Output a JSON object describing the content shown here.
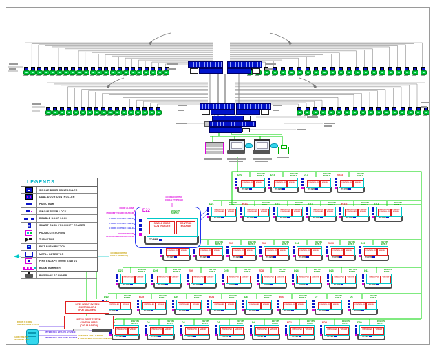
{
  "sheet": {
    "bg": "#ffffff",
    "border_color": "#9a9a9a"
  },
  "colors": {
    "blue": "#0a14c8",
    "green_wire": "#00d400",
    "device_green": "#00c83c",
    "cyan": "#00c8c8",
    "red": "#e02020",
    "magenta": "#dd00dd",
    "yellow": "#c8a000",
    "gray": "#8c8c8c",
    "dark_cable": "#4d4d4d"
  },
  "top_section": {
    "device_rows": [
      {
        "name": "top-left-run",
        "device_count": 22
      },
      {
        "name": "top-right-run",
        "device_count": 22
      },
      {
        "name": "mid-left-run",
        "device_count": 17
      },
      {
        "name": "mid-right-run",
        "device_count": 17
      }
    ],
    "equipment": [
      {
        "icon": "equipment-rack-icon"
      },
      {
        "icon": "workstation-icon"
      },
      {
        "icon": "workstation-icon"
      },
      {
        "icon": "printer-icon"
      }
    ]
  },
  "legend": {
    "title": "LEGENDS",
    "items": [
      {
        "icon": "single-door-controller-icon",
        "label": "SINGLE DOOR CONTROLLER"
      },
      {
        "icon": "dual-door-controller-icon",
        "label": "DUAL DOOR CONTROLLER"
      },
      {
        "icon": "panic-bar-icon",
        "label": "PANIC BAR"
      },
      {
        "icon": "single-door-lock-icon",
        "label": "SINGLE DOOR LOCK"
      },
      {
        "icon": "double-door-lock-icon",
        "label": "DOUBLE DOOR LOCK"
      },
      {
        "icon": "smart-card-proximity-reader-icon",
        "label": "SMART CARD PROXIMITY READER"
      },
      {
        "icon": "psu-accessories-icon",
        "label": "PSU ACCESSORIES"
      },
      {
        "icon": "turnstile-icon",
        "label": "TURNSTILE"
      },
      {
        "icon": "exit-push-button-icon",
        "label": "EXIT PUSH BUTTON"
      },
      {
        "icon": "metal-detector-icon",
        "label": "METAL DETECTOR"
      },
      {
        "icon": "fire-escape-door-status-icon",
        "label": "FIRE ESCAPE DOOR STATUS"
      },
      {
        "icon": "boom-barrier-icon",
        "label": "BOOM BARRIER"
      },
      {
        "icon": "baggage-scanner-icon",
        "label": "BAGGAGE SCANNER"
      }
    ]
  },
  "module_template": {
    "controller": "SINGLE DOOR CONTROLLER",
    "control_module": "CONTROL MODULE",
    "ups": "230V UPS\nSUPPLY",
    "pmp": "TO PMP"
  },
  "detail_module": {
    "id": "D22",
    "ups_annotation": "230V UPS\nSUPPLY",
    "top_annotation": "4 CORE COPPER\nCABLE (TYPICAL)",
    "left_annotations": [
      {
        "text": "DOOR ALARM",
        "color": "#dd00dd"
      },
      {
        "text": "PROXIMITY CARD READER",
        "color": "#dd00dd"
      },
      {
        "text": "6 CORE COPPER CABLE",
        "color": "#4444ee"
      },
      {
        "text": "8 CORE COPPER CABLE",
        "color": "#4444ee"
      },
      {
        "text": "4 CORE COPPER CABLE",
        "color": "#4444ee"
      },
      {
        "text": "DOUBLE DOOR\nELECTROMAGNETIC LOCK",
        "color": "#dd00dd"
      }
    ]
  },
  "grid": {
    "rows": [
      {
        "ids": [
          "D20",
          "D19",
          "D17",
          "ED13"
        ]
      },
      {
        "ids": [
          "D21",
          "ED12",
          "D16",
          "D15",
          "ED11",
          "D14"
        ]
      },
      {
        "ids": [
          "D13",
          "D12",
          "ED7",
          "ED6",
          "D18",
          "ED10",
          "D28"
        ]
      },
      {
        "ids": [
          "D27",
          "D26",
          "ED9",
          "D25",
          "ED8",
          "D24",
          "D23",
          "D11"
        ]
      },
      {
        "ids": [
          "D10",
          "ED5",
          "D9",
          "ED4",
          "D8",
          "ED3",
          "D7",
          "D6"
        ]
      },
      {
        "ids": [
          "D5",
          "D2",
          "D3",
          "D1",
          "D4",
          "ED1",
          "ED2",
          "D30"
        ]
      }
    ]
  },
  "controllers": [
    {
      "label": "INTELLIGENT SYSTEM\nCONTROLLER-1\n(FOR 32 DOORS)"
    },
    {
      "label": "INTELLIGENT SYSTEM\nCONTROLLER-2\n(FOR 32 DOORS)"
    }
  ],
  "annotations": {
    "cable_note": "4 CORE COPPER\nCABLE (TYPICAL)",
    "twisted_pair_note": "RUN IN 6 CORE\nTWISTED PAIR CABLE",
    "security_note": "CARD USE AT\nSECURITY AREA",
    "charger_note": "CHARGER FOR LOADING\n& TO PROVIDE ACCESS CONTROL",
    "interface_pa": "INTERFACE WITH PA SYSTEM",
    "interface_bms": "INTERFACE WITH BMS SYSTEM"
  }
}
